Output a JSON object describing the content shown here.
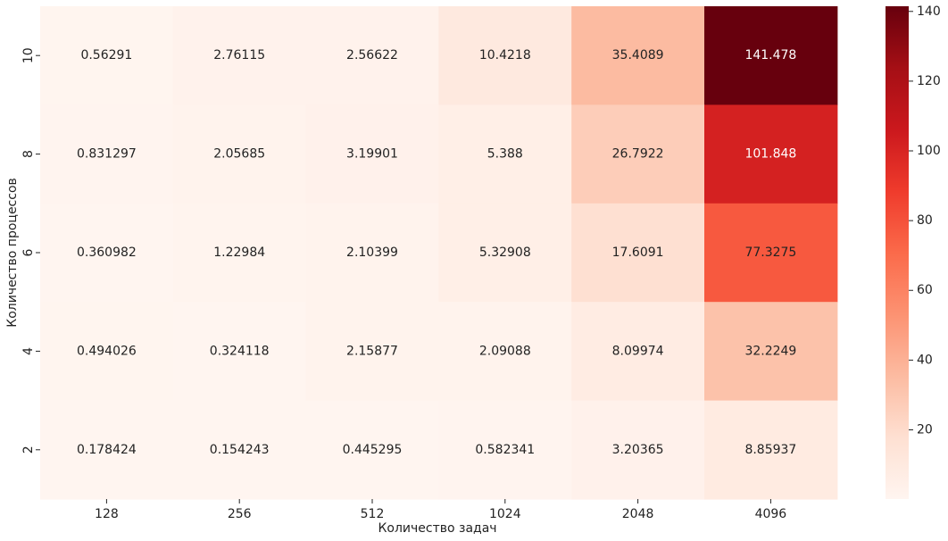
{
  "chart_data": {
    "type": "heatmap",
    "title": "",
    "xlabel": "Количество задач",
    "ylabel": "Количество процессов",
    "x_categories": [
      "128",
      "256",
      "512",
      "1024",
      "2048",
      "4096"
    ],
    "y_categories": [
      "10",
      "8",
      "6",
      "4",
      "2"
    ],
    "values": [
      [
        0.56291,
        2.76115,
        2.56622,
        10.4218,
        35.4089,
        141.478
      ],
      [
        0.831297,
        2.05685,
        3.19901,
        5.388,
        26.7922,
        101.848
      ],
      [
        0.360982,
        1.22984,
        2.10399,
        5.32908,
        17.6091,
        77.3275
      ],
      [
        0.494026,
        0.324118,
        2.15877,
        2.09088,
        8.09974,
        32.2249
      ],
      [
        0.178424,
        0.154243,
        0.445295,
        0.582341,
        3.20365,
        8.85937
      ]
    ],
    "value_labels": [
      [
        "0.56291",
        "2.76115",
        "2.56622",
        "10.4218",
        "35.4089",
        "141.478"
      ],
      [
        "0.831297",
        "2.05685",
        "3.19901",
        "5.388",
        "26.7922",
        "101.848"
      ],
      [
        "0.360982",
        "1.22984",
        "2.10399",
        "5.32908",
        "17.6091",
        "77.3275"
      ],
      [
        "0.494026",
        "0.324118",
        "2.15877",
        "2.09088",
        "8.09974",
        "32.2249"
      ],
      [
        "0.178424",
        "0.154243",
        "0.445295",
        "0.582341",
        "3.20365",
        "8.85937"
      ]
    ],
    "colorbar": {
      "colormap": "Reds",
      "vmin": 0.154243,
      "vmax": 141.478,
      "ticks": [
        20,
        40,
        60,
        80,
        100,
        120,
        140
      ]
    },
    "grid": false,
    "legend": "colorbar-right"
  }
}
